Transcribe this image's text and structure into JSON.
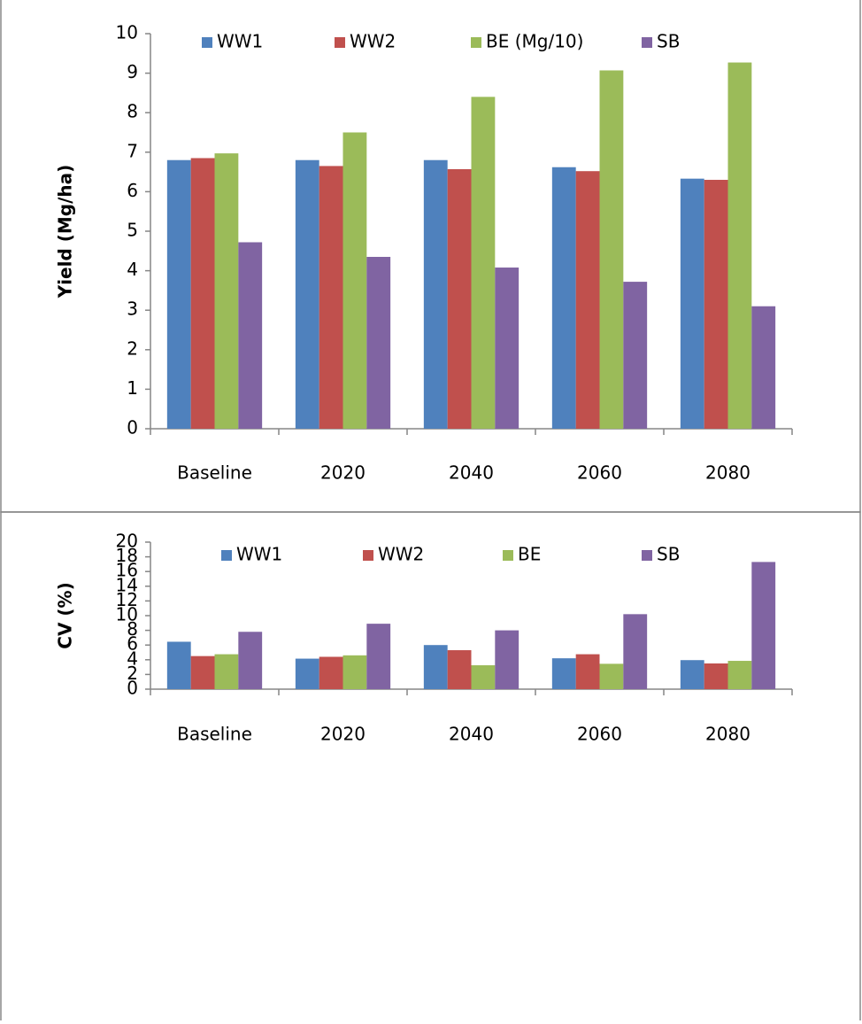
{
  "chart_data": [
    {
      "type": "bar",
      "y_label": "Yield (Mg/ha)",
      "categories": [
        "Baseline",
        "2020",
        "2040",
        "2060",
        "2080"
      ],
      "series": [
        {
          "name": "WW1",
          "color": "#4f81bd",
          "values": [
            6.8,
            6.8,
            6.8,
            6.62,
            6.33
          ]
        },
        {
          "name": "WW2",
          "color": "#c0504d",
          "values": [
            6.85,
            6.65,
            6.57,
            6.52,
            6.3
          ]
        },
        {
          "name": "BE (Mg/10)",
          "color": "#9bbb59",
          "values": [
            6.97,
            7.5,
            8.4,
            9.07,
            9.27
          ]
        },
        {
          "name": "SB",
          "color": "#8064a2",
          "values": [
            4.72,
            4.35,
            4.08,
            3.72,
            3.1
          ]
        }
      ],
      "ylim": [
        0,
        10
      ],
      "yticks": [
        0,
        1,
        2,
        3,
        4,
        5,
        6,
        7,
        8,
        9,
        10
      ],
      "grid": false
    },
    {
      "type": "bar",
      "y_label": "CV (%)",
      "categories": [
        "Baseline",
        "2020",
        "2040",
        "2060",
        "2080"
      ],
      "series": [
        {
          "name": "WW1",
          "color": "#4f81bd",
          "values": [
            6.45,
            4.15,
            6.0,
            4.2,
            3.95
          ]
        },
        {
          "name": "WW2",
          "color": "#c0504d",
          "values": [
            4.5,
            4.4,
            5.3,
            4.75,
            3.5
          ]
        },
        {
          "name": "BE",
          "color": "#9bbb59",
          "values": [
            4.75,
            4.6,
            3.25,
            3.45,
            3.85
          ]
        },
        {
          "name": "SB",
          "color": "#8064a2",
          "values": [
            7.8,
            8.9,
            8.0,
            10.2,
            17.3
          ]
        }
      ],
      "ylim": [
        0,
        20
      ],
      "yticks": [
        0,
        2,
        4,
        6,
        8,
        10,
        12,
        14,
        16,
        18,
        20
      ],
      "grid": false
    }
  ]
}
